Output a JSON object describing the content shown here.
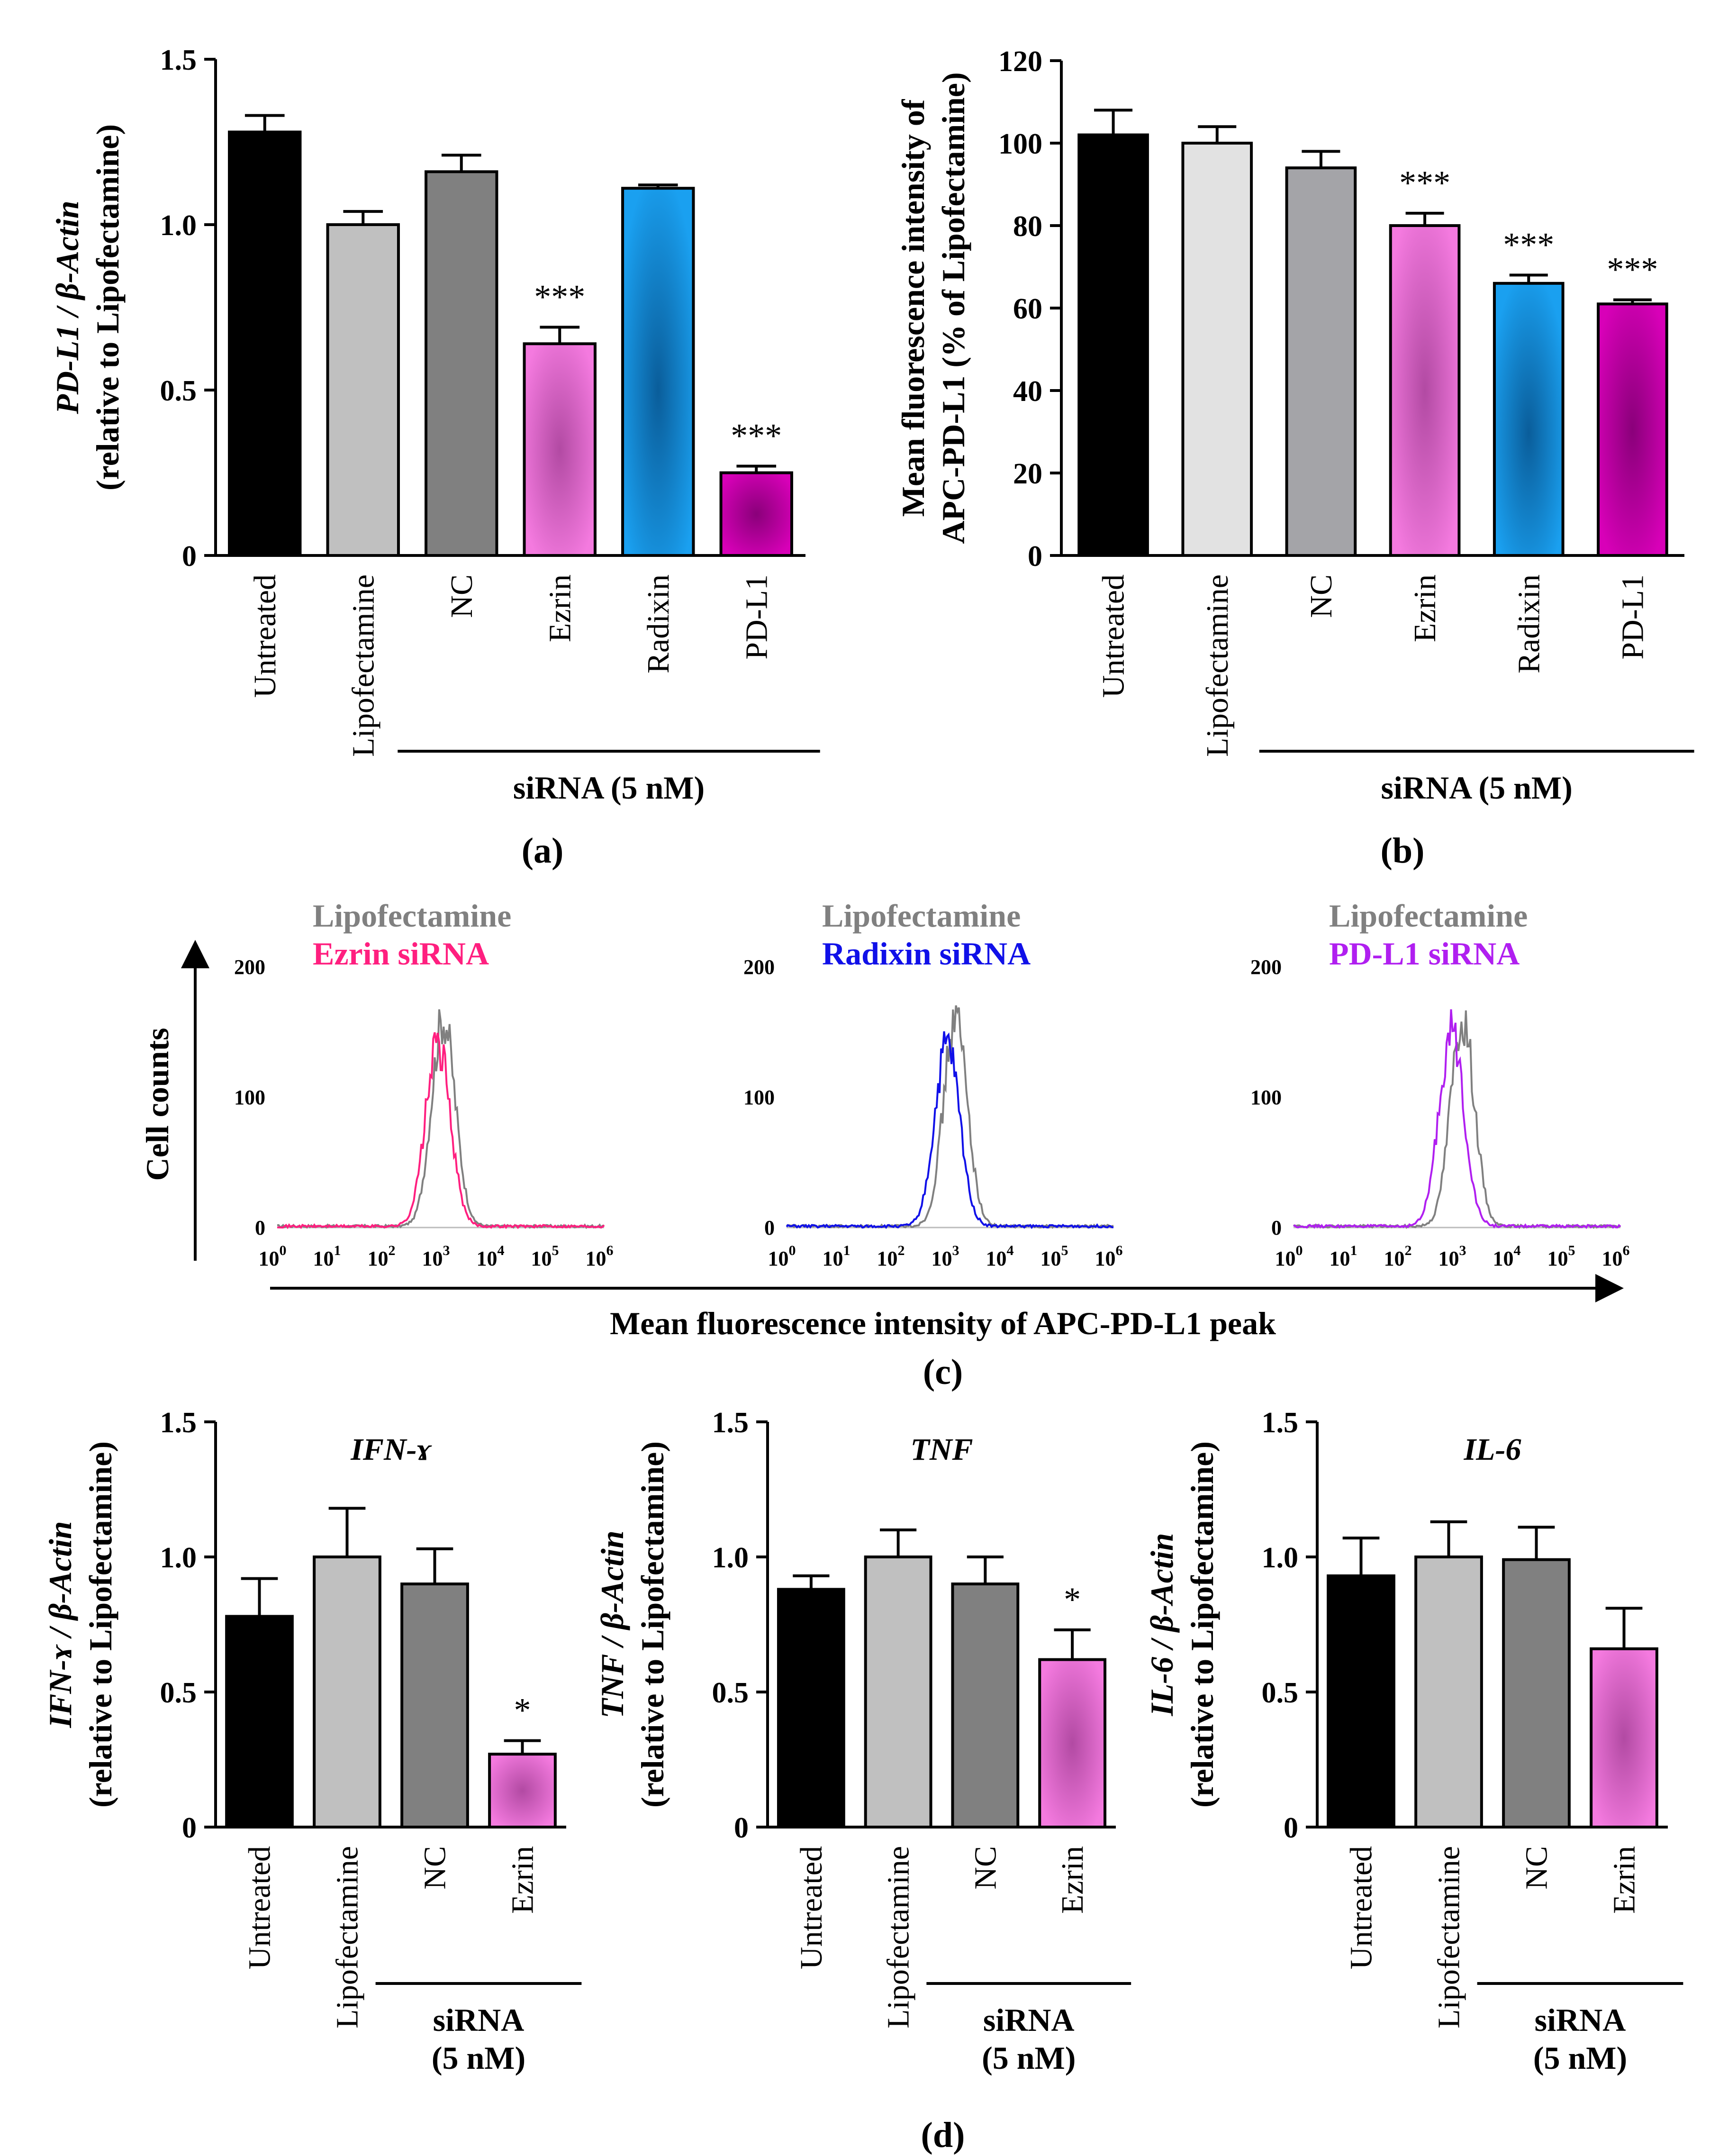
{
  "colors": {
    "untreated": "#000000",
    "lipofectamine_a": "#c0c0c0",
    "lipofectamine_b": "#e2e2e2",
    "nc": "#808080",
    "nc_b": "#a4a4a8",
    "ezrin": "#f47adf",
    "ezrin_dark": "#b24aa3",
    "radixin": "#1aa0f0",
    "radixin_dark": "#0a5d9a",
    "pdl1": "#d800b8",
    "pdl1_dark": "#8a007a",
    "flow_lipofectamine": "#808080",
    "flow_ezrin": "#ff1f7f",
    "flow_radixin": "#1010e8",
    "flow_pdl1": "#b01ff0"
  },
  "panel_labels": {
    "a": "(a)",
    "b": "(b)",
    "c": "(c)",
    "d": "(d)"
  },
  "group_label": "siRNA (5 nM)",
  "group_label_lines": [
    "siRNA",
    "(5 nM)"
  ],
  "chart_data": [
    {
      "id": "a",
      "type": "bar",
      "title": "",
      "ylabel_line1_italic": "PD-L1 / β-Actin",
      "ylabel_line2": "(relative to Lipofectamine)",
      "categories": [
        "Untreated",
        "Lipofectamine",
        "NC",
        "Ezrin",
        "Radixin",
        "PD-L1"
      ],
      "values": [
        1.28,
        1.0,
        1.16,
        0.64,
        1.11,
        0.25
      ],
      "errors": [
        0.05,
        0.04,
        0.05,
        0.05,
        0.01,
        0.02
      ],
      "significance": [
        "",
        "",
        "",
        "***",
        "",
        "***"
      ],
      "ylim": [
        0,
        1.5
      ],
      "yticks": [
        0,
        0.5,
        1.0,
        1.5
      ],
      "ytick_labels": [
        "0",
        "0.5",
        "1.0",
        "1.5"
      ],
      "group_bracket": [
        "NC",
        "PD-L1"
      ]
    },
    {
      "id": "b",
      "type": "bar",
      "title": "",
      "ylabel_line1": "Mean fluorescence intensity of",
      "ylabel_line2": "APC-PD-L1 (% of Lipofectamine)",
      "categories": [
        "Untreated",
        "Lipofectamine",
        "NC",
        "Ezrin",
        "Radixin",
        "PD-L1"
      ],
      "values": [
        102,
        100,
        94,
        80,
        66,
        61
      ],
      "errors": [
        6,
        4,
        4,
        3,
        2,
        1
      ],
      "significance": [
        "",
        "",
        "",
        "***",
        "***",
        "***"
      ],
      "ylim": [
        0,
        120
      ],
      "yticks": [
        0,
        20,
        40,
        60,
        80,
        100,
        120
      ],
      "ytick_labels": [
        "0",
        "20",
        "40",
        "60",
        "80",
        "100",
        "120"
      ],
      "group_bracket": [
        "NC",
        "PD-L1"
      ]
    },
    {
      "id": "c",
      "type": "histogram",
      "ylabel": "Cell counts",
      "xlabel": "Mean fluorescence intensity of APC-PD-L1 peak",
      "x_scale": "log10",
      "x_ticks_exponents": [
        0,
        1,
        2,
        3,
        4,
        5,
        6
      ],
      "x_tick_base": "10",
      "ylim": [
        0,
        200
      ],
      "y_ticks": [
        0,
        100,
        200
      ],
      "y_tick_labels": [
        "0",
        "100",
        "200"
      ],
      "plots": [
        {
          "legend": [
            "Lipofectamine",
            "Ezrin siRNA"
          ],
          "reference_peak_log10": 3.05,
          "reference_peak_count": 160,
          "sample_peak_log10": 2.95,
          "sample_peak_count": 140
        },
        {
          "legend": [
            "Lipofectamine",
            "Radixin siRNA"
          ],
          "reference_peak_log10": 3.1,
          "reference_peak_count": 160,
          "sample_peak_log10": 2.95,
          "sample_peak_count": 140
        },
        {
          "legend": [
            "Lipofectamine",
            "PD-L1 siRNA"
          ],
          "reference_peak_log10": 3.1,
          "reference_peak_count": 160,
          "sample_peak_log10": 2.9,
          "sample_peak_count": 150
        }
      ]
    },
    {
      "id": "d1",
      "type": "bar",
      "title": "IFN-ɤ",
      "ylabel_line1_italic": "IFN-ɤ / β-Actin",
      "ylabel_line2": "(relative to Lipofectamine)",
      "categories": [
        "Untreated",
        "Lipofectamine",
        "NC",
        "Ezrin"
      ],
      "values": [
        0.78,
        1.0,
        0.9,
        0.27
      ],
      "errors": [
        0.14,
        0.18,
        0.13,
        0.05
      ],
      "significance": [
        "",
        "",
        "",
        "*"
      ],
      "ylim": [
        0,
        1.5
      ],
      "yticks": [
        0,
        0.5,
        1.0,
        1.5
      ],
      "ytick_labels": [
        "0",
        "0.5",
        "1.0",
        "1.5"
      ],
      "group_bracket": [
        "NC",
        "Ezrin"
      ]
    },
    {
      "id": "d2",
      "type": "bar",
      "title": "TNF",
      "ylabel_line1_italic": "TNF / β-Actin",
      "ylabel_line2": "(relative to Lipofectamine)",
      "categories": [
        "Untreated",
        "Lipofectamine",
        "NC",
        "Ezrin"
      ],
      "values": [
        0.88,
        1.0,
        0.9,
        0.62
      ],
      "errors": [
        0.05,
        0.1,
        0.1,
        0.11
      ],
      "significance": [
        "",
        "",
        "",
        "*"
      ],
      "ylim": [
        0,
        1.5
      ],
      "yticks": [
        0,
        0.5,
        1.0,
        1.5
      ],
      "ytick_labels": [
        "0",
        "0.5",
        "1.0",
        "1.5"
      ],
      "group_bracket": [
        "NC",
        "Ezrin"
      ]
    },
    {
      "id": "d3",
      "type": "bar",
      "title": "IL-6",
      "ylabel_line1_italic": "IL-6 / β-Actin",
      "ylabel_line2": "(relative to Lipofectamine)",
      "categories": [
        "Untreated",
        "Lipofectamine",
        "NC",
        "Ezrin"
      ],
      "values": [
        0.93,
        1.0,
        0.99,
        0.66
      ],
      "errors": [
        0.14,
        0.13,
        0.12,
        0.15
      ],
      "significance": [
        "",
        "",
        "",
        ""
      ],
      "ylim": [
        0,
        1.5
      ],
      "yticks": [
        0,
        0.5,
        1.0,
        1.5
      ],
      "ytick_labels": [
        "0",
        "0.5",
        "1.0",
        "1.5"
      ],
      "group_bracket": [
        "NC",
        "Ezrin"
      ]
    }
  ]
}
